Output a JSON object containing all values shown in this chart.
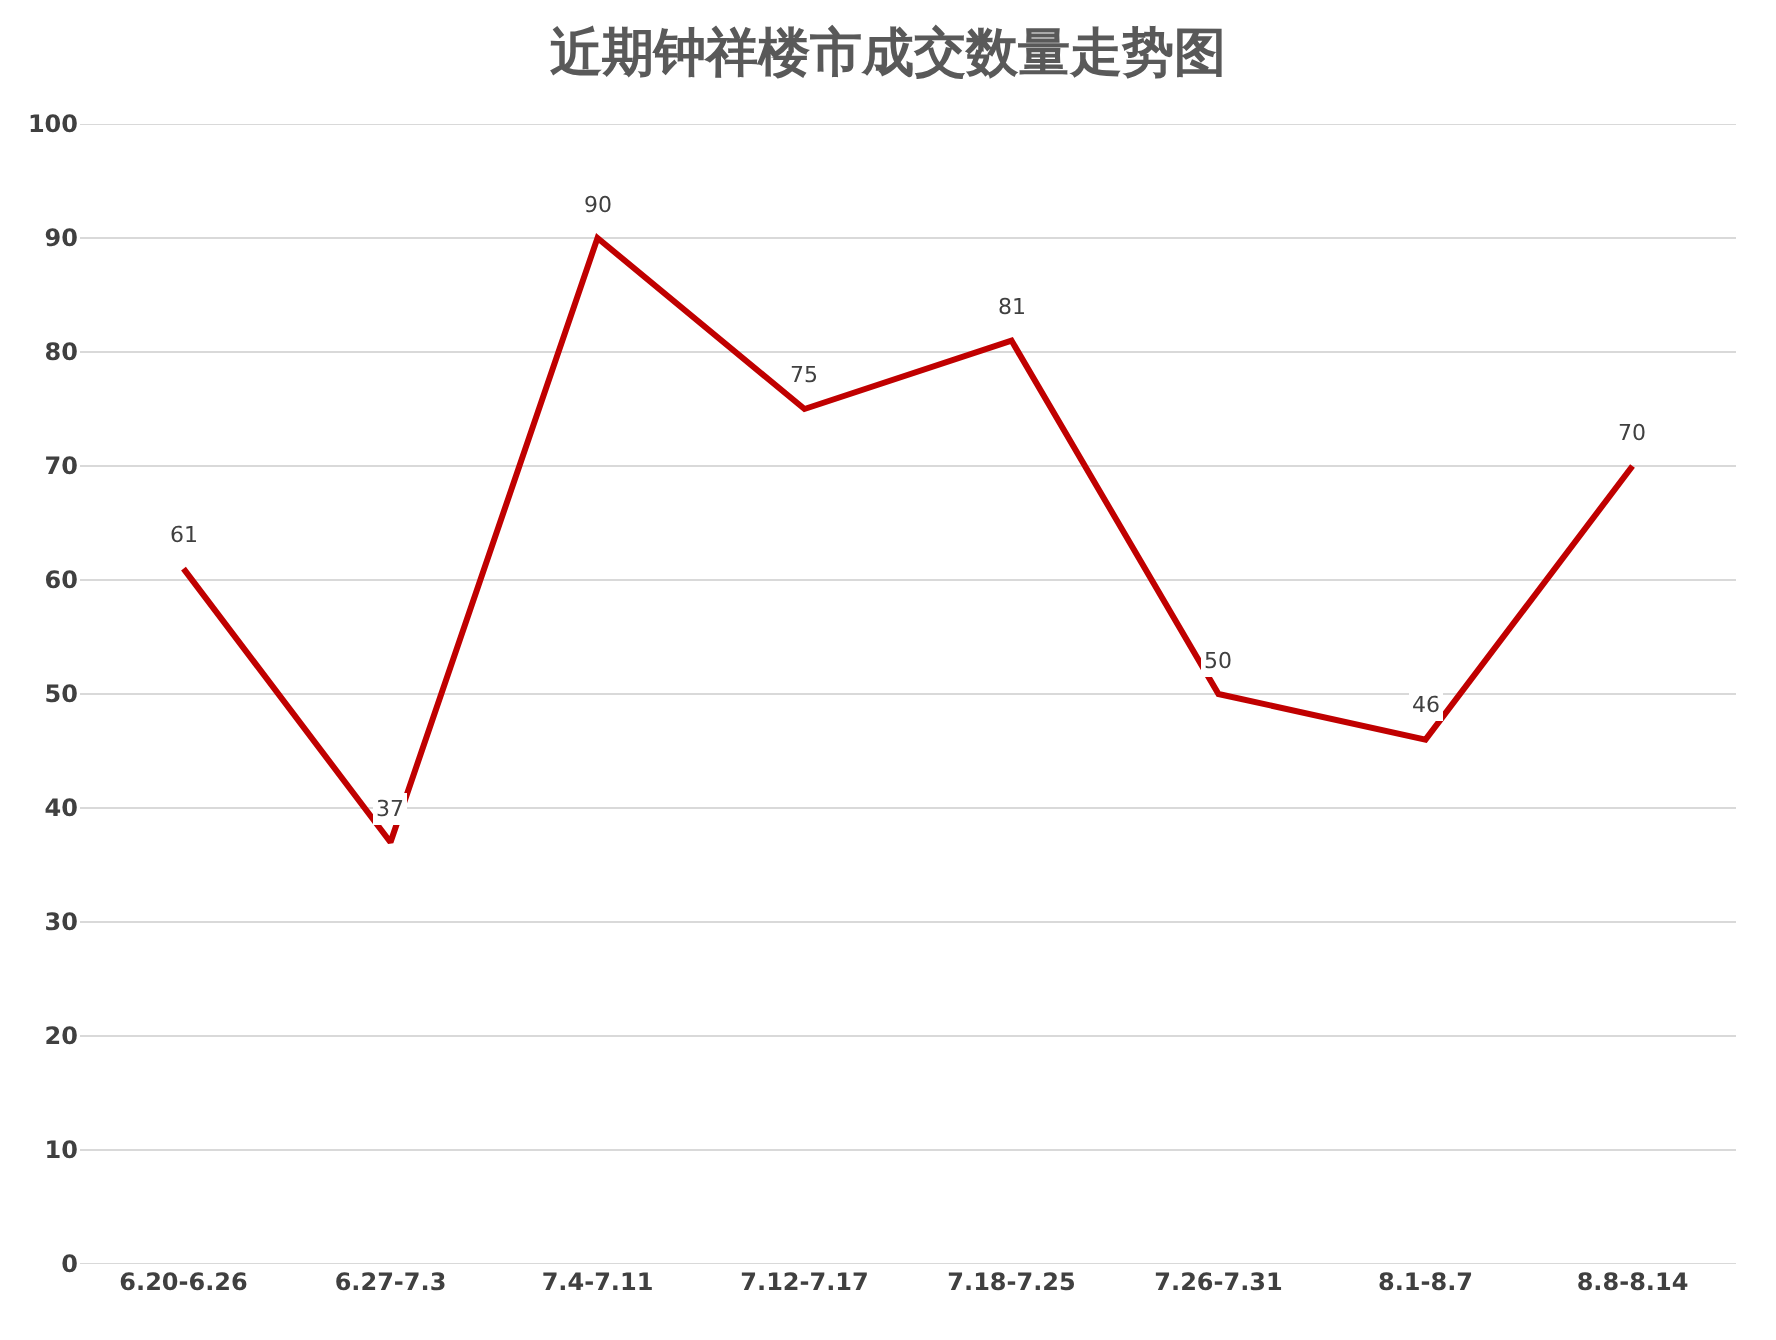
{
  "chart_data": {
    "type": "line",
    "title": "近期钟祥楼市成交数量走势图",
    "categories": [
      "6.20-6.26",
      "6.27-7.3",
      "7.4-7.11",
      "7.12-7.17",
      "7.18-7.25",
      "7.26-7.31",
      "8.1-8.7",
      "8.8-8.14"
    ],
    "series": [
      {
        "color": "#c00000",
        "values": [
          61,
          37,
          90,
          75,
          81,
          50,
          46,
          70
        ]
      }
    ],
    "ylim": [
      0,
      100
    ],
    "yticks": [
      0,
      10,
      20,
      30,
      40,
      50,
      60,
      70,
      80,
      90,
      100
    ],
    "grid": "y",
    "data_labels": true,
    "marker": "none",
    "line_style": "solid"
  }
}
